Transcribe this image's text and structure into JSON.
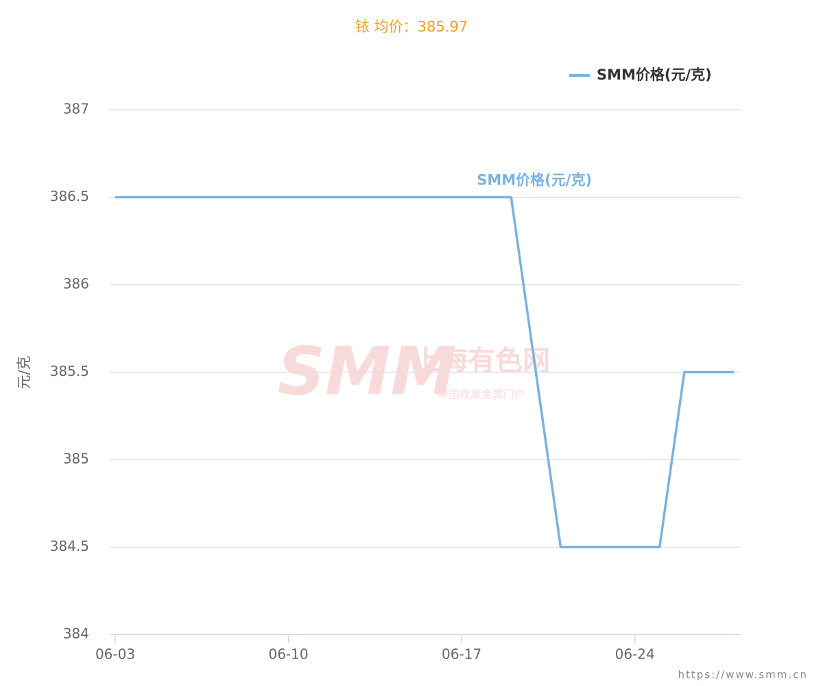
{
  "chart_data": {
    "type": "line",
    "title": "铱 均价：385.97",
    "y_label": "元/克",
    "x": [
      "06-03",
      "06-04",
      "06-05",
      "06-06",
      "06-07",
      "06-11",
      "06-12",
      "06-13",
      "06-14",
      "06-17",
      "06-18",
      "06-19",
      "06-20",
      "06-21",
      "06-24",
      "06-25",
      "06-26",
      "06-27",
      "06-28"
    ],
    "series": [
      {
        "name": "SMM价格(元/克)",
        "color": "#7cb2e0",
        "values": [
          386.5,
          386.5,
          386.5,
          386.5,
          386.5,
          386.5,
          386.5,
          386.5,
          386.5,
          386.5,
          386.5,
          386.5,
          385.5,
          384.5,
          384.5,
          384.5,
          385.5,
          385.5,
          385.5
        ]
      }
    ],
    "xticks": [
      "06-03",
      "06-10",
      "06-17",
      "06-24"
    ],
    "ylim": [
      384,
      387
    ],
    "yticks": [
      384,
      384.5,
      385,
      385.5,
      386,
      386.5,
      387
    ],
    "grid": true,
    "legend": "top-right",
    "watermark": [
      "SMM",
      "上海有色网",
      "中国权威金属门户"
    ],
    "source": "https://www.smm.cn"
  }
}
